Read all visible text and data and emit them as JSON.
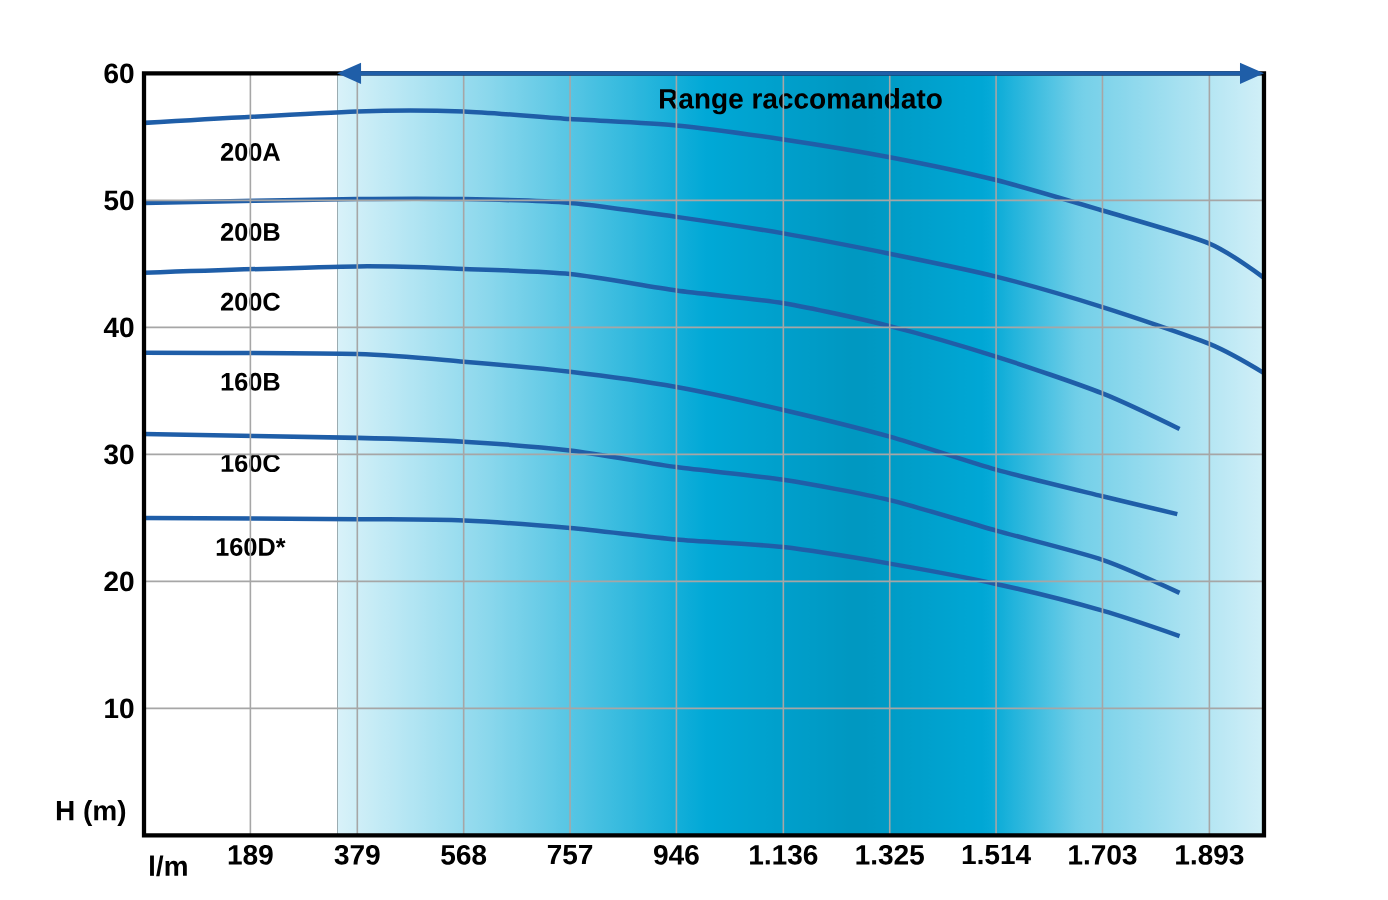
{
  "chart_data": {
    "type": "line",
    "xlabel": "l/m",
    "ylabel": "H (m)",
    "xlim": [
      0,
      1990
    ],
    "ylim": [
      0,
      60
    ],
    "xticks": [
      189,
      379,
      568,
      757,
      946,
      {
        "value": 1136,
        "label": "1.136"
      },
      {
        "value": 1325,
        "label": "1.325"
      },
      {
        "value": 1514,
        "label": "1.514"
      },
      {
        "value": 1703,
        "label": "1.703"
      },
      {
        "value": 1893,
        "label": "1.893"
      }
    ],
    "yticks": [
      10,
      20,
      30,
      40,
      50,
      60
    ],
    "grid": true,
    "bands": [
      {
        "axis": "x",
        "from": 343,
        "to": 1990,
        "label": "Range raccomandato",
        "color": "#00a8d6"
      }
    ],
    "series": [
      {
        "name": "200A",
        "color": "#1f5ea8",
        "x": [
          0,
          379,
          568,
          757,
          946,
          1136,
          1325,
          1514,
          1703,
          1893,
          1990
        ],
        "values": [
          56.1,
          57.0,
          57.0,
          56.4,
          55.9,
          54.8,
          53.4,
          51.6,
          49.2,
          46.6,
          43.9
        ]
      },
      {
        "name": "200B",
        "color": "#1f5ea8",
        "x": [
          0,
          379,
          568,
          757,
          946,
          1136,
          1325,
          1514,
          1703,
          1893,
          1990
        ],
        "values": [
          49.8,
          50.1,
          50.1,
          49.8,
          48.7,
          47.4,
          45.8,
          44.0,
          41.6,
          38.7,
          36.4
        ]
      },
      {
        "name": "200C",
        "color": "#1f5ea8",
        "x": [
          0,
          379,
          568,
          757,
          946,
          1136,
          1325,
          1514,
          1703,
          1840
        ],
        "values": [
          44.3,
          44.8,
          44.6,
          44.2,
          42.9,
          41.9,
          40.1,
          37.7,
          34.8,
          32.0
        ]
      },
      {
        "name": "160B",
        "color": "#1f5ea8",
        "x": [
          0,
          379,
          568,
          757,
          946,
          1136,
          1325,
          1514,
          1703,
          1836
        ],
        "values": [
          38.0,
          37.9,
          37.3,
          36.5,
          35.3,
          33.5,
          31.4,
          28.8,
          26.7,
          25.3
        ]
      },
      {
        "name": "160C",
        "color": "#1f5ea8",
        "x": [
          0,
          379,
          568,
          757,
          946,
          1136,
          1325,
          1514,
          1703,
          1840
        ],
        "values": [
          31.6,
          31.3,
          31.0,
          30.3,
          29.0,
          28.0,
          26.4,
          24.0,
          21.7,
          19.1
        ]
      },
      {
        "name": "160D*",
        "color": "#1f5ea8",
        "x": [
          0,
          379,
          568,
          757,
          946,
          1136,
          1325,
          1514,
          1703,
          1840
        ],
        "values": [
          25.0,
          24.9,
          24.8,
          24.2,
          23.3,
          22.7,
          21.4,
          19.8,
          17.7,
          15.7
        ]
      }
    ]
  }
}
